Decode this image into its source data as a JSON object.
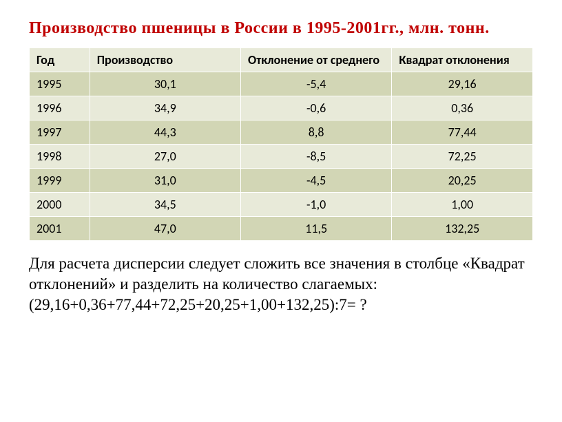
{
  "title": "Производство пшеницы в России в 1995-2001гг., млн. тонн.",
  "table": {
    "columns": [
      "Год",
      "Производство",
      "Отклонение от среднего",
      "Квадрат отклонения"
    ],
    "rows": [
      [
        "1995",
        "30,1",
        "-5,4",
        "29,16"
      ],
      [
        "1996",
        "34,9",
        "-0,6",
        "0,36"
      ],
      [
        "1997",
        "44,3",
        "8,8",
        "77,44"
      ],
      [
        "1998",
        "27,0",
        "-8,5",
        "72,25"
      ],
      [
        "1999",
        "31,0",
        "-4,5",
        "20,25"
      ],
      [
        "2000",
        "34,5",
        "-1,0",
        "1,00"
      ],
      [
        "2001",
        "47,0",
        "11,5",
        "132,25"
      ]
    ],
    "header_bg": "#e8ead9",
    "row_odd_bg": "#d2d6b5",
    "row_even_bg": "#e8ead9",
    "border_color": "#ffffff",
    "font_family": "Calibri",
    "cell_fontsize": 18
  },
  "explain": {
    "line1": "Для расчета дисперсии следует сложить все значения в столбце «Квадрат отклонений» и разделить на количество слагаемых:",
    "line2": "(29,16+0,36+77,44+72,25+20,25+1,00+132,25):7=   ?"
  },
  "colors": {
    "title": "#c00000",
    "text": "#000000",
    "background": "#ffffff"
  }
}
